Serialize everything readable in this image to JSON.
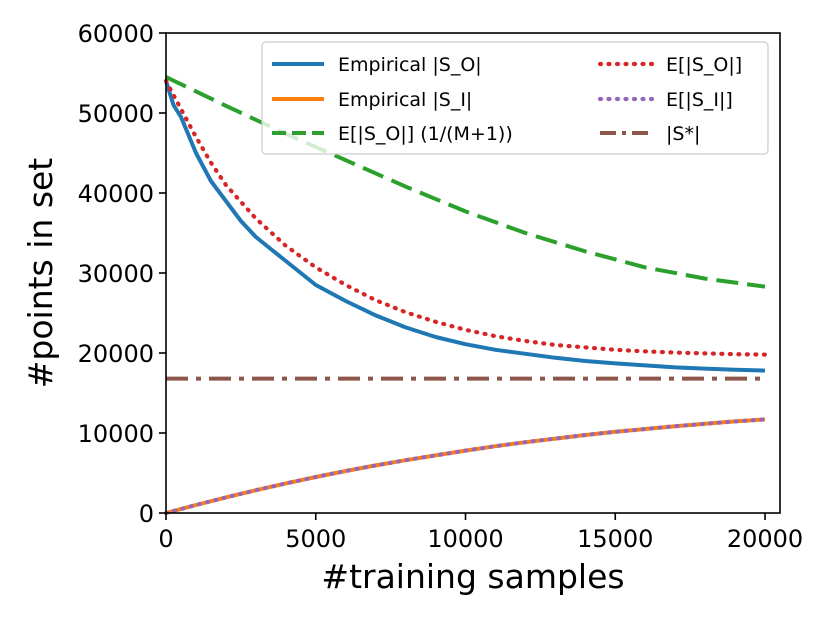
{
  "chart_data": {
    "type": "line",
    "title": "",
    "xlabel": "#training samples",
    "ylabel": "#points in set",
    "xlim": [
      0,
      20500
    ],
    "ylim": [
      0,
      60000
    ],
    "xticks": [
      0,
      5000,
      10000,
      15000,
      20000
    ],
    "xtick_labels": [
      "0",
      "5000",
      "10000",
      "15000",
      "20000"
    ],
    "yticks": [
      0,
      10000,
      20000,
      30000,
      40000,
      50000,
      60000
    ],
    "ytick_labels": [
      "0",
      "10000",
      "20000",
      "30000",
      "40000",
      "50000",
      "60000"
    ],
    "grid": false,
    "legend_position": "top-right",
    "series": [
      {
        "name": "Empirical |S_O|",
        "color": "#1f77b4",
        "style": "solid",
        "x": [
          0,
          250,
          500,
          1000,
          1500,
          2000,
          2500,
          3000,
          3500,
          4000,
          5000,
          6000,
          7000,
          8000,
          9000,
          10000,
          11000,
          12000,
          13000,
          14000,
          15000,
          16000,
          17000,
          18000,
          19000,
          20000
        ],
        "y": [
          54000,
          51000,
          49500,
          45000,
          41500,
          39000,
          36500,
          34500,
          33000,
          31500,
          28500,
          26500,
          24700,
          23200,
          22000,
          21100,
          20400,
          19900,
          19400,
          19000,
          18700,
          18450,
          18200,
          18050,
          17900,
          17800
        ]
      },
      {
        "name": "Empirical |S_I|",
        "color": "#ff7f0e",
        "style": "solid",
        "x": [
          0,
          1000,
          2000,
          3000,
          4000,
          5000,
          6000,
          7000,
          8000,
          9000,
          10000,
          11000,
          12000,
          13000,
          14000,
          15000,
          16000,
          17000,
          18000,
          19000,
          20000
        ],
        "y": [
          0,
          1000,
          1950,
          2850,
          3700,
          4500,
          5250,
          5950,
          6600,
          7200,
          7800,
          8350,
          8850,
          9300,
          9750,
          10150,
          10500,
          10850,
          11150,
          11450,
          11700
        ]
      },
      {
        "name": "E[|S_O|] (1/(M+1))",
        "color": "#2ca02c",
        "style": "dashed",
        "x": [
          0,
          2000,
          4000,
          6000,
          8000,
          10000,
          12000,
          14000,
          16000,
          18000,
          20000
        ],
        "y": [
          54500,
          50900,
          47400,
          44100,
          40800,
          37700,
          35000,
          32700,
          30700,
          29300,
          28300
        ]
      },
      {
        "name": "E[|S_O|]",
        "color": "#d62728",
        "style": "dotted",
        "x": [
          0,
          500,
          1000,
          1500,
          2000,
          3000,
          4000,
          5000,
          6000,
          7000,
          8000,
          9000,
          10000,
          11000,
          12000,
          13000,
          14000,
          15000,
          16000,
          17000,
          18000,
          19000,
          20000
        ],
        "y": [
          54000,
          50500,
          47000,
          43800,
          41000,
          36800,
          33400,
          30700,
          28500,
          26600,
          25100,
          23900,
          22900,
          22100,
          21500,
          21000,
          20700,
          20400,
          20200,
          20050,
          19950,
          19850,
          19800
        ]
      },
      {
        "name": "E[|S_I|]",
        "color": "#9467bd",
        "style": "dotted",
        "x": [
          0,
          1000,
          2000,
          3000,
          4000,
          5000,
          6000,
          7000,
          8000,
          9000,
          10000,
          11000,
          12000,
          13000,
          14000,
          15000,
          16000,
          17000,
          18000,
          19000,
          20000
        ],
        "y": [
          0,
          1000,
          1950,
          2850,
          3700,
          4500,
          5250,
          5950,
          6600,
          7200,
          7800,
          8350,
          8850,
          9300,
          9750,
          10150,
          10500,
          10850,
          11150,
          11450,
          11700
        ]
      },
      {
        "name": "|S*|",
        "color": "#8c564b",
        "style": "dashdot",
        "x": [
          0,
          20000
        ],
        "y": [
          16800,
          16800
        ]
      }
    ],
    "legend_order": [
      "Empirical |S_O|",
      "Empirical |S_I|",
      "E[|S_O|] (1/(M+1))",
      "E[|S_O|]",
      "E[|S_I|]",
      "|S*|"
    ]
  }
}
